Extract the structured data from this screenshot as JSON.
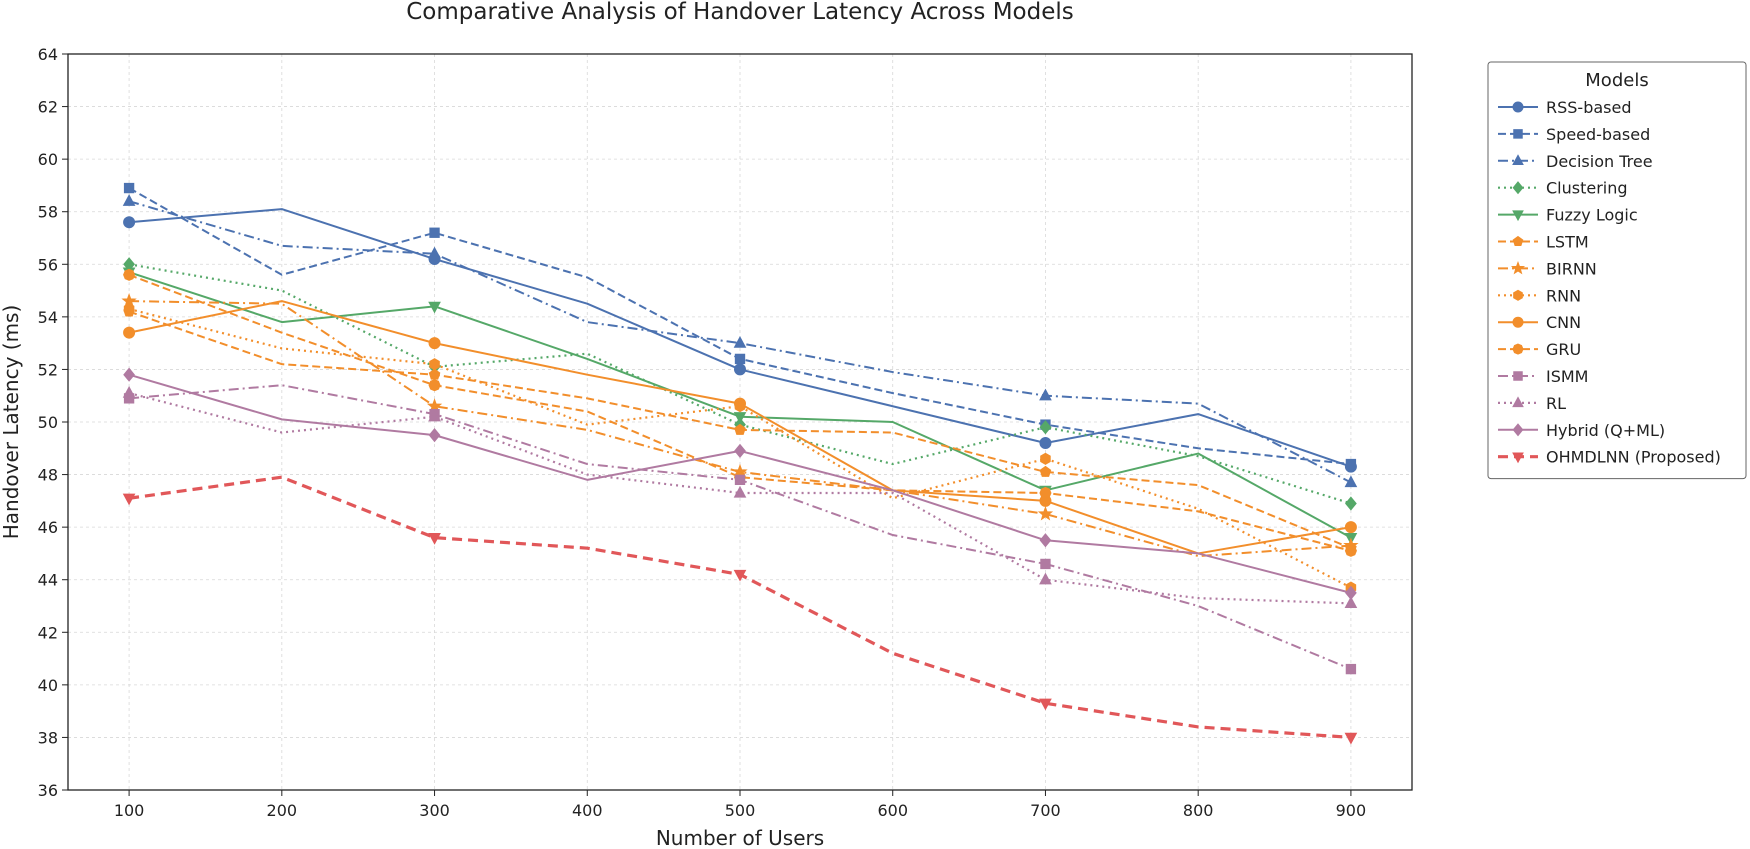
{
  "chart_data": {
    "type": "line",
    "title": "Comparative Analysis of Handover Latency Across Models",
    "xlabel": "Number of Users",
    "ylabel": "Handover Latency (ms)",
    "x": [
      100,
      200,
      300,
      400,
      500,
      600,
      700,
      800,
      900
    ],
    "xticks": [
      100,
      200,
      300,
      400,
      500,
      600,
      700,
      800,
      900
    ],
    "xlim": [
      60,
      940
    ],
    "ylim": [
      36,
      64
    ],
    "yticks": [
      36,
      38,
      40,
      42,
      44,
      46,
      48,
      50,
      52,
      54,
      56,
      58,
      60,
      62,
      64
    ],
    "grid": true,
    "legend_title": "Models",
    "legend_position": "outside right",
    "series": [
      {
        "name": "RSS-based",
        "color": "#4c72b0",
        "dash": "solid",
        "marker": "circle",
        "marker_idx": [
          0,
          2,
          4,
          6,
          8
        ],
        "values": [
          57.6,
          58.1,
          56.2,
          54.5,
          52.0,
          50.6,
          49.2,
          50.3,
          48.3
        ]
      },
      {
        "name": "Speed-based",
        "color": "#4c72b0",
        "dash": "dashed",
        "marker": "square",
        "marker_idx": [
          0,
          2,
          4,
          6,
          8
        ],
        "values": [
          58.9,
          55.6,
          57.2,
          55.5,
          52.4,
          51.1,
          49.9,
          49.0,
          48.4
        ]
      },
      {
        "name": "Decision Tree",
        "color": "#4c72b0",
        "dash": "dashdot",
        "marker": "triangle-up",
        "marker_idx": [
          0,
          2,
          4,
          6,
          8
        ],
        "values": [
          58.4,
          56.7,
          56.4,
          53.8,
          53.0,
          51.9,
          51.0,
          50.7,
          47.7
        ]
      },
      {
        "name": "Clustering",
        "color": "#55a868",
        "dash": "dotted",
        "marker": "diamond",
        "marker_idx": [
          0,
          2,
          4,
          6,
          8
        ],
        "values": [
          56.0,
          55.0,
          52.1,
          52.6,
          49.9,
          48.4,
          49.8,
          48.7,
          46.9
        ]
      },
      {
        "name": "Fuzzy Logic",
        "color": "#55a868",
        "dash": "solid",
        "marker": "triangle-down",
        "marker_idx": [
          0,
          2,
          4,
          6,
          8
        ],
        "values": [
          55.7,
          53.8,
          54.4,
          52.4,
          50.2,
          50.0,
          47.4,
          48.8,
          45.6
        ]
      },
      {
        "name": "LSTM",
        "color": "#f28e2b",
        "dash": "dashed",
        "marker": "pentagon",
        "marker_idx": [
          0,
          2,
          4,
          6,
          8
        ],
        "values": [
          54.2,
          52.2,
          51.8,
          50.9,
          49.7,
          49.6,
          48.1,
          47.6,
          45.2
        ]
      },
      {
        "name": "BIRNN",
        "color": "#f28e2b",
        "dash": "dashdot",
        "marker": "star",
        "marker_idx": [
          0,
          2,
          4,
          6,
          8
        ],
        "values": [
          54.6,
          54.5,
          50.6,
          49.7,
          48.1,
          47.4,
          46.5,
          44.9,
          45.3
        ]
      },
      {
        "name": "RNN",
        "color": "#f28e2b",
        "dash": "dotted",
        "marker": "hexagon",
        "marker_idx": [
          0,
          2,
          4,
          6,
          8
        ],
        "values": [
          54.3,
          52.8,
          52.2,
          49.9,
          50.6,
          47.1,
          48.6,
          46.7,
          43.7
        ]
      },
      {
        "name": "CNN",
        "color": "#f28e2b",
        "dash": "solid",
        "marker": "circle",
        "marker_idx": [
          0,
          2,
          4,
          6,
          8
        ],
        "values": [
          53.4,
          54.6,
          53.0,
          51.8,
          50.7,
          47.4,
          47.0,
          45.0,
          46.0
        ]
      },
      {
        "name": "GRU",
        "color": "#f28e2b",
        "dash": "dashed",
        "marker": "octagon",
        "marker_idx": [
          0,
          2,
          4,
          6,
          8
        ],
        "values": [
          55.6,
          53.4,
          51.4,
          50.4,
          47.9,
          47.4,
          47.3,
          46.6,
          45.1
        ]
      },
      {
        "name": "ISMM",
        "color": "#b07aa1",
        "dash": "dashdot",
        "marker": "square",
        "marker_idx": [
          0,
          2,
          4,
          6,
          8
        ],
        "values": [
          50.9,
          51.4,
          50.3,
          48.4,
          47.8,
          45.7,
          44.6,
          43.0,
          40.6
        ]
      },
      {
        "name": "RL",
        "color": "#b07aa1",
        "dash": "dotted",
        "marker": "triangle-up",
        "marker_idx": [
          0,
          2,
          4,
          6,
          8
        ],
        "values": [
          51.1,
          49.6,
          50.2,
          48.0,
          47.3,
          47.3,
          44.0,
          43.3,
          43.1
        ]
      },
      {
        "name": "Hybrid (Q+ML)",
        "color": "#b07aa1",
        "dash": "solid",
        "marker": "diamond",
        "marker_idx": [
          0,
          2,
          4,
          6,
          8
        ],
        "values": [
          51.8,
          50.1,
          49.5,
          47.8,
          48.9,
          47.4,
          45.5,
          45.0,
          43.5
        ]
      },
      {
        "name": "OHMDLNN (Proposed)",
        "color": "#e15759",
        "dash": "bold-dashed",
        "marker": "triangle-down",
        "marker_idx": [
          0,
          2,
          4,
          6,
          8
        ],
        "values": [
          47.1,
          47.9,
          45.6,
          45.2,
          44.2,
          41.2,
          39.3,
          38.4,
          38.0
        ]
      }
    ]
  }
}
